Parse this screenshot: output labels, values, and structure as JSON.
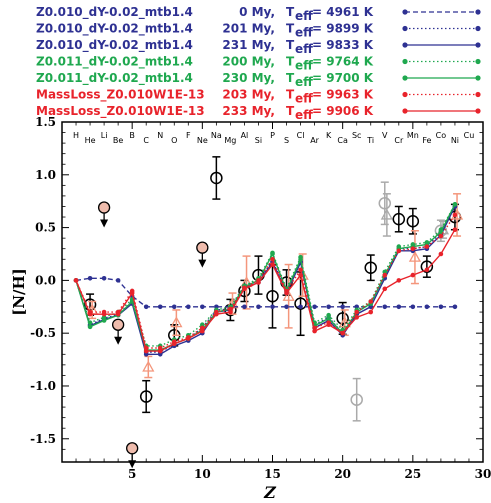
{
  "chart_data": {
    "type": "line",
    "xlabel": "Z",
    "ylabel": "[N/H]",
    "xlim": [
      0,
      30
    ],
    "ylim": [
      -1.72,
      1.5
    ],
    "xticks": [
      5,
      10,
      15,
      20,
      25,
      30
    ],
    "yticks": [
      -1.5,
      -1.0,
      -0.5,
      0.0,
      0.5,
      1.0,
      1.5
    ],
    "ytick_labels": [
      "-1.5",
      "-1.0",
      "-0.5",
      "0.0",
      "0.5",
      "1.0",
      "1.5"
    ],
    "element_labels": [
      {
        "z": 1,
        "sym": "H"
      },
      {
        "z": 2,
        "sym": "He"
      },
      {
        "z": 3,
        "sym": "Li"
      },
      {
        "z": 4,
        "sym": "Be"
      },
      {
        "z": 5,
        "sym": "B"
      },
      {
        "z": 6,
        "sym": "C"
      },
      {
        "z": 7,
        "sym": "N"
      },
      {
        "z": 8,
        "sym": "O"
      },
      {
        "z": 9,
        "sym": "F"
      },
      {
        "z": 10,
        "sym": "Ne"
      },
      {
        "z": 11,
        "sym": "Na"
      },
      {
        "z": 12,
        "sym": "Mg"
      },
      {
        "z": 13,
        "sym": "Al"
      },
      {
        "z": 14,
        "sym": "Si"
      },
      {
        "z": 15,
        "sym": "P"
      },
      {
        "z": 16,
        "sym": "S"
      },
      {
        "z": 17,
        "sym": "Cl"
      },
      {
        "z": 18,
        "sym": "Ar"
      },
      {
        "z": 19,
        "sym": "K"
      },
      {
        "z": 20,
        "sym": "Ca"
      },
      {
        "z": 21,
        "sym": "Sc"
      },
      {
        "z": 22,
        "sym": "Ti"
      },
      {
        "z": 23,
        "sym": "V"
      },
      {
        "z": 24,
        "sym": "Cr"
      },
      {
        "z": 25,
        "sym": "Mn"
      },
      {
        "z": 26,
        "sym": "Fe"
      },
      {
        "z": 27,
        "sym": "Co"
      },
      {
        "z": 28,
        "sym": "Ni"
      },
      {
        "z": 29,
        "sym": "Cu"
      }
    ],
    "legend_position": "top",
    "series": [
      {
        "name": "Z0.010_dY-0.02_mtb1.4",
        "age": "0 My,",
        "teff": "4961 K",
        "color": "#2e3192",
        "dash": "dashed",
        "x": [
          1,
          2,
          3,
          4,
          5,
          6,
          7,
          8,
          9,
          10,
          11,
          12,
          13,
          14,
          15,
          16,
          17,
          18,
          19,
          20,
          21,
          22,
          23,
          24,
          25,
          26,
          27,
          28
        ],
        "y": [
          0.0,
          0.02,
          0.02,
          0.0,
          -0.15,
          -0.25,
          -0.25,
          -0.25,
          -0.25,
          -0.25,
          -0.25,
          -0.25,
          -0.25,
          -0.25,
          -0.25,
          -0.25,
          -0.25,
          -0.25,
          -0.25,
          -0.25,
          -0.25,
          -0.25,
          -0.25,
          -0.25,
          -0.25,
          -0.25,
          -0.25,
          -0.25
        ]
      },
      {
        "name": "Z0.010_dY-0.02_mtb1.4",
        "age": "201 My,",
        "teff": "9899 K",
        "color": "#2e3192",
        "dash": "dotted",
        "x": [
          1,
          2,
          3,
          4,
          5,
          6,
          7,
          8,
          9,
          10,
          11,
          12,
          13,
          14,
          15,
          16,
          17,
          18,
          19,
          20,
          21,
          22,
          23,
          24,
          25,
          26,
          27,
          28
        ],
        "y": [
          0.0,
          -0.42,
          -0.36,
          -0.32,
          -0.2,
          -0.68,
          -0.68,
          -0.6,
          -0.55,
          -0.45,
          -0.28,
          -0.27,
          -0.05,
          0.0,
          0.18,
          -0.1,
          0.18,
          -0.42,
          -0.35,
          -0.5,
          -0.3,
          -0.22,
          0.05,
          0.3,
          0.3,
          0.32,
          0.45,
          0.7
        ]
      },
      {
        "name": "Z0.010_dY-0.02_mtb1.4",
        "age": "231 My,",
        "teff": "9833 K",
        "color": "#2e3192",
        "dash": "solid",
        "x": [
          1,
          2,
          3,
          4,
          5,
          6,
          7,
          8,
          9,
          10,
          11,
          12,
          13,
          14,
          15,
          16,
          17,
          18,
          19,
          20,
          21,
          22,
          23,
          24,
          25,
          26,
          27,
          28
        ],
        "y": [
          0.0,
          -0.43,
          -0.37,
          -0.33,
          -0.22,
          -0.7,
          -0.7,
          -0.62,
          -0.57,
          -0.5,
          -0.3,
          -0.28,
          -0.07,
          -0.02,
          0.17,
          -0.12,
          0.17,
          -0.45,
          -0.38,
          -0.52,
          -0.32,
          -0.25,
          0.02,
          0.28,
          0.28,
          0.3,
          0.43,
          0.7
        ]
      },
      {
        "name": "Z0.011_dY-0.02_mtb1.4",
        "age": "200 My,",
        "teff": "9764 K",
        "color": "#1fa84f",
        "dash": "dotted",
        "x": [
          1,
          2,
          3,
          4,
          5,
          6,
          7,
          8,
          9,
          10,
          11,
          12,
          13,
          14,
          15,
          16,
          17,
          18,
          19,
          20,
          21,
          22,
          23,
          24,
          25,
          26,
          27,
          28
        ],
        "y": [
          0.0,
          -0.4,
          -0.35,
          -0.3,
          -0.18,
          -0.62,
          -0.62,
          -0.56,
          -0.52,
          -0.42,
          -0.28,
          -0.25,
          -0.05,
          0.02,
          0.26,
          -0.08,
          0.22,
          -0.4,
          -0.33,
          -0.47,
          -0.28,
          -0.2,
          0.08,
          0.32,
          0.34,
          0.36,
          0.48,
          0.72
        ]
      },
      {
        "name": "Z0.011_dY-0.02_mtb1.4",
        "age": "230 My,",
        "teff": "9700 K",
        "color": "#1fa84f",
        "dash": "solid",
        "x": [
          1,
          2,
          3,
          4,
          5,
          6,
          7,
          8,
          9,
          10,
          11,
          12,
          13,
          14,
          15,
          16,
          17,
          18,
          19,
          20,
          21,
          22,
          23,
          24,
          25,
          26,
          27,
          28
        ],
        "y": [
          0.0,
          -0.44,
          -0.38,
          -0.33,
          -0.2,
          -0.66,
          -0.66,
          -0.6,
          -0.55,
          -0.47,
          -0.3,
          -0.27,
          -0.06,
          0.0,
          0.25,
          -0.1,
          0.2,
          -0.43,
          -0.36,
          -0.5,
          -0.3,
          -0.22,
          0.05,
          0.3,
          0.32,
          0.34,
          0.46,
          0.72
        ]
      },
      {
        "name": "MassLoss_Z0.010W1E-13",
        "age": "203 My,",
        "teff": "9963 K",
        "color": "#e8232b",
        "dash": "dotted",
        "x": [
          1,
          2,
          3,
          4,
          5,
          6,
          7,
          8,
          9,
          10,
          11,
          12,
          13,
          14,
          15,
          16,
          17,
          18,
          19,
          20,
          21,
          22,
          23,
          24,
          25,
          26,
          27,
          28
        ],
        "y": [
          0.0,
          -0.3,
          -0.3,
          -0.3,
          -0.1,
          -0.64,
          -0.64,
          -0.58,
          -0.54,
          -0.45,
          -0.3,
          -0.27,
          -0.07,
          0.0,
          0.2,
          -0.1,
          0.1,
          -0.45,
          -0.4,
          -0.5,
          -0.3,
          -0.2,
          0.05,
          0.28,
          0.3,
          0.32,
          0.42,
          0.62
        ]
      },
      {
        "name": "MassLoss_Z0.010W1E-13",
        "age": "233 My,",
        "teff": "9906 K",
        "color": "#e8232b",
        "dash": "solid",
        "x": [
          1,
          2,
          3,
          4,
          5,
          6,
          7,
          8,
          9,
          10,
          11,
          12,
          13,
          14,
          15,
          16,
          17,
          18,
          19,
          20,
          21,
          22,
          23,
          24,
          25,
          26,
          27,
          28
        ],
        "y": [
          0.0,
          -0.32,
          -0.32,
          -0.32,
          -0.12,
          -0.67,
          -0.67,
          -0.6,
          -0.55,
          -0.48,
          -0.32,
          -0.3,
          -0.08,
          -0.02,
          0.15,
          -0.12,
          0.05,
          -0.48,
          -0.42,
          -0.5,
          -0.35,
          -0.3,
          -0.08,
          0.0,
          0.05,
          0.1,
          0.25,
          0.48
        ]
      }
    ],
    "observations": [
      {
        "z": 2,
        "y": -0.23,
        "err": 0.1,
        "style": "black-open-circle"
      },
      {
        "z": 2,
        "y": -0.28,
        "err": 0.08,
        "style": "salmon-triangle"
      },
      {
        "z": 3,
        "y": 0.69,
        "upper_limit": true,
        "style": "black-open-circle"
      },
      {
        "z": 4,
        "y": -0.42,
        "upper_limit": true,
        "style": "black-open-circle"
      },
      {
        "z": 5,
        "y": -1.59,
        "upper_limit": true,
        "style": "black-open-circle"
      },
      {
        "z": 6,
        "y": -1.1,
        "err": 0.15,
        "style": "black-open-circle"
      },
      {
        "z": 6,
        "y": -0.82,
        "err": 0.1,
        "style": "salmon-triangle"
      },
      {
        "z": 8,
        "y": -0.52,
        "err": 0.1,
        "style": "black-open-circle"
      },
      {
        "z": 8,
        "y": -0.4,
        "err": 0.12,
        "style": "salmon-triangle"
      },
      {
        "z": 10,
        "y": 0.31,
        "upper_limit": true,
        "style": "black-open-circle"
      },
      {
        "z": 11,
        "y": 0.97,
        "err": 0.2,
        "style": "black-open-circle"
      },
      {
        "z": 12,
        "y": -0.28,
        "err": 0.1,
        "style": "black-open-circle"
      },
      {
        "z": 12,
        "y": -0.22,
        "err": 0.1,
        "style": "salmon-triangle"
      },
      {
        "z": 13,
        "y": -0.1,
        "err": 0.1,
        "style": "black-open-circle"
      },
      {
        "z": 13,
        "y": -0.02,
        "err": 0.25,
        "style": "salmon-triangle"
      },
      {
        "z": 14,
        "y": 0.05,
        "err": 0.18,
        "style": "black-open-circle"
      },
      {
        "z": 15,
        "y": -0.15,
        "err": 0.3,
        "style": "black-open-circle"
      },
      {
        "z": 16,
        "y": -0.02,
        "err": 0.12,
        "style": "black-open-circle"
      },
      {
        "z": 16,
        "y": -0.15,
        "err": 0.3,
        "style": "salmon-triangle"
      },
      {
        "z": 17,
        "y": -0.22,
        "err": 0.3,
        "style": "black-open-circle"
      },
      {
        "z": 17,
        "y": 0.05,
        "err": 0.2,
        "style": "salmon-triangle"
      },
      {
        "z": 20,
        "y": -0.36,
        "err": 0.15,
        "style": "black-open-circle"
      },
      {
        "z": 20,
        "y": -0.4,
        "err": 0.12,
        "style": "salmon-triangle"
      },
      {
        "z": 21,
        "y": -1.13,
        "err": 0.2,
        "style": "grey-open-circle"
      },
      {
        "z": 22,
        "y": 0.12,
        "err": 0.12,
        "style": "black-open-circle"
      },
      {
        "z": 23,
        "y": 0.73,
        "err": 0.2,
        "style": "grey-open-circle"
      },
      {
        "z": 23,
        "y": 0.62,
        "err": 0.2,
        "style": "grey-triangle"
      },
      {
        "z": 24,
        "y": 0.58,
        "err": 0.12,
        "style": "black-open-circle"
      },
      {
        "z": 25,
        "y": 0.56,
        "err": 0.12,
        "style": "black-open-circle"
      },
      {
        "z": 25,
        "y": 0.22,
        "err": 0.25,
        "style": "salmon-triangle"
      },
      {
        "z": 26,
        "y": 0.13,
        "err": 0.1,
        "style": "black-open-circle"
      },
      {
        "z": 27,
        "y": 0.47,
        "err": 0.1,
        "style": "grey-open-circle"
      },
      {
        "z": 27,
        "y": 0.48,
        "err": 0.08,
        "style": "grey-triangle"
      },
      {
        "z": 28,
        "y": 0.6,
        "err": 0.12,
        "style": "black-open-circle"
      },
      {
        "z": 28,
        "y": 0.62,
        "err": 0.2,
        "style": "salmon-triangle"
      }
    ]
  }
}
